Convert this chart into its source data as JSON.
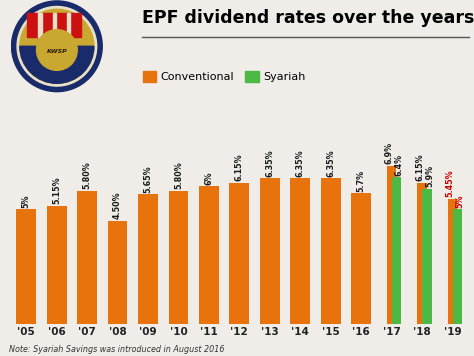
{
  "years": [
    "'05",
    "'06",
    "'07",
    "'08",
    "'09",
    "'10",
    "'11",
    "'12",
    "'13",
    "'14",
    "'15",
    "'16",
    "'17",
    "'18",
    "'19"
  ],
  "conventional": [
    5.0,
    5.15,
    5.8,
    4.5,
    5.65,
    5.8,
    6.0,
    6.15,
    6.35,
    6.35,
    6.35,
    5.7,
    6.9,
    6.15,
    5.45
  ],
  "syariah": [
    null,
    null,
    null,
    null,
    null,
    null,
    null,
    null,
    null,
    null,
    null,
    null,
    6.4,
    5.9,
    5.0
  ],
  "conventional_labels": [
    "5%",
    "5.15%",
    "5.80%",
    "4.50%",
    "5.65%",
    "5.80%",
    "6%",
    "6.15%",
    "6.35%",
    "6.35%",
    "6.35%",
    "5.7%",
    "6.9%",
    "6.15%",
    "5.45%"
  ],
  "syariah_labels": [
    "",
    "",
    "",
    "",
    "",
    "",
    "",
    "",
    "",
    "",
    "",
    "",
    "6.4%",
    "5.9%",
    "5%"
  ],
  "conv_color": "#E8720C",
  "syariah_color": "#4CB944",
  "title": "EPF dividend rates over the years",
  "note": "Note: Syariah Savings was introduced in August 2016",
  "bg_color": "#f0ede8",
  "label_color_normal": "#1a1a1a",
  "label_color_red": "#cc0000",
  "ylim_max": 9.0,
  "single_bar_width": 0.65,
  "pair_bar_width": 0.32
}
